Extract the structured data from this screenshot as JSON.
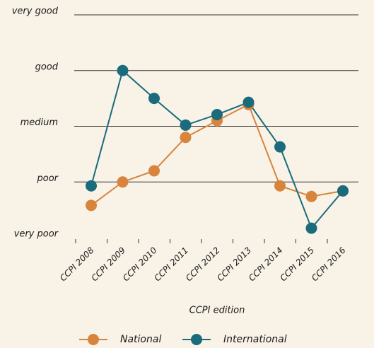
{
  "chart_data": {
    "type": "line",
    "x_label": "CCPI edition",
    "categories": [
      "CCPI 2008",
      "CCPI 2009",
      "CCPI 2010",
      "CCPI 2011",
      "CCPI 2012",
      "CCPI 2013",
      "CCPI 2014",
      "CCPI 2015",
      "CCPI 2016"
    ],
    "series": [
      {
        "name": "National",
        "color": "#d8843c",
        "values": [
          1.58,
          2.0,
          2.2,
          2.8,
          3.1,
          3.39,
          1.93,
          1.74,
          1.84
        ]
      },
      {
        "name": "International",
        "color": "#1a6b7c",
        "values": [
          1.93,
          4.0,
          3.5,
          3.02,
          3.21,
          3.43,
          2.63,
          1.17,
          1.84
        ]
      }
    ],
    "ylim": [
      1,
      5
    ],
    "yticks": [
      {
        "value": 1,
        "label": "very poor"
      },
      {
        "value": 2,
        "label": "poor"
      },
      {
        "value": 3,
        "label": "medium"
      },
      {
        "value": 4,
        "label": "good"
      },
      {
        "value": 5,
        "label": "very good"
      }
    ],
    "grid": true
  }
}
